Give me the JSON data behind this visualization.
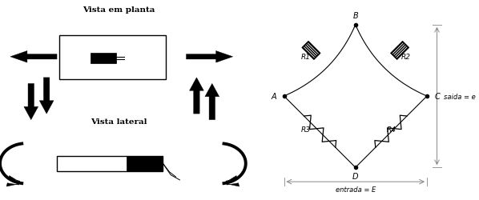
{
  "bg_color": "#ffffff",
  "title_left_top": "Vista em planta",
  "title_left_bot": "Vista lateral",
  "label_saida": "saida = e",
  "label_entrada": "entrada = E",
  "text_color": "#000000",
  "line_color": "#888888"
}
